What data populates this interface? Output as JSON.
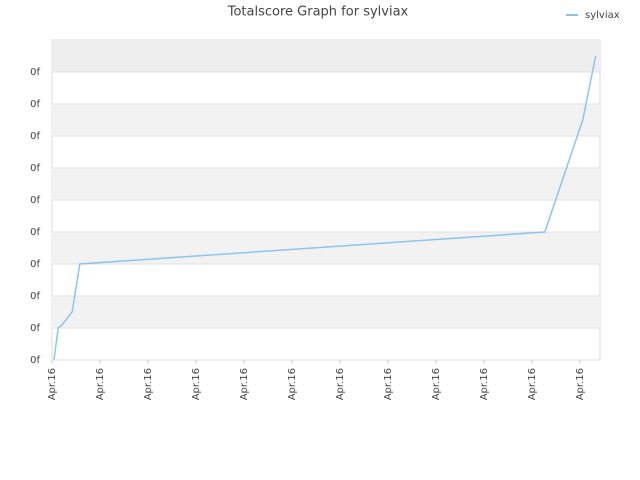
{
  "chart_data": {
    "type": "line",
    "title": "Totalscore Graph for sylviax",
    "x": [
      0.04,
      0.13,
      0.21,
      0.42,
      0.58,
      10.27,
      11.06,
      11.33
    ],
    "series": [
      {
        "name": "sylviax",
        "color": "#8ec3ee",
        "values": [
          0,
          1,
          1.1,
          1.5,
          3,
          4,
          7.5,
          9.5
        ]
      }
    ],
    "xlim": [
      0,
      11.42
    ],
    "ylim": [
      0,
      10
    ],
    "xticks": [
      {
        "value": 0,
        "label": "Apr.16"
      },
      {
        "value": 1,
        "label": "Apr.16"
      },
      {
        "value": 2,
        "label": "Apr.16"
      },
      {
        "value": 3,
        "label": "Apr.16"
      },
      {
        "value": 4,
        "label": "Apr.16"
      },
      {
        "value": 5,
        "label": "Apr.16"
      },
      {
        "value": 6,
        "label": "Apr.16"
      },
      {
        "value": 7,
        "label": "Apr.16"
      },
      {
        "value": 8,
        "label": "Apr.16"
      },
      {
        "value": 9,
        "label": "Apr.16"
      },
      {
        "value": 10,
        "label": "Apr.16"
      },
      {
        "value": 11,
        "label": "Apr.16"
      }
    ],
    "yticks": [
      {
        "value": 0,
        "label": "0f"
      },
      {
        "value": 1,
        "label": "0f"
      },
      {
        "value": 2,
        "label": "0f"
      },
      {
        "value": 3,
        "label": "0f"
      },
      {
        "value": 4,
        "label": "0f"
      },
      {
        "value": 5,
        "label": "0f"
      },
      {
        "value": 6,
        "label": "0f"
      },
      {
        "value": 7,
        "label": "0f"
      },
      {
        "value": 8,
        "label": "0f"
      },
      {
        "value": 9,
        "label": "0f"
      }
    ],
    "grid": true,
    "legend": "top-right"
  }
}
